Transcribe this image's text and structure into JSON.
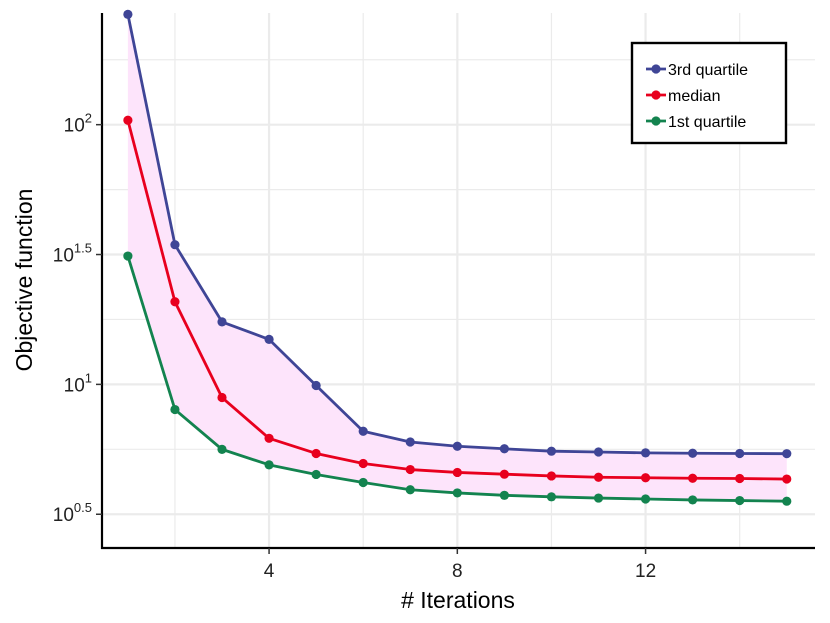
{
  "chart_data": {
    "type": "line",
    "xlabel": "# Iterations",
    "ylabel": "Objective function",
    "x": [
      1,
      2,
      3,
      4,
      5,
      6,
      7,
      8,
      9,
      10,
      11,
      12,
      13,
      14,
      15
    ],
    "x_ticks": [
      4,
      8,
      12
    ],
    "xlim": [
      0.45,
      15.6
    ],
    "y_scale": "log10",
    "y_ticks": [
      {
        "base": "10",
        "exp": "0.5"
      },
      {
        "base": "10",
        "exp": "1"
      },
      {
        "base": "10",
        "exp": "1.5"
      },
      {
        "base": "10",
        "exp": "2"
      }
    ],
    "ylim_log10": [
      0.37,
      2.43
    ],
    "grid": true,
    "legend_position": "top-right",
    "ribbon": {
      "between": [
        "1st quartile",
        "3rd quartile"
      ],
      "color": "#fde4fb"
    },
    "series": [
      {
        "name": "3rd quartile",
        "color": "#3f4596",
        "values": [
          266,
          34.5,
          17.4,
          14.9,
          9.9,
          6.6,
          6.0,
          5.78,
          5.65,
          5.53,
          5.49,
          5.45,
          5.43,
          5.42,
          5.41
        ]
      },
      {
        "name": "median",
        "color": "#e8001e",
        "values": [
          104,
          20.8,
          8.9,
          6.2,
          5.42,
          4.96,
          4.7,
          4.58,
          4.51,
          4.44,
          4.39,
          4.37,
          4.35,
          4.34,
          4.32
        ]
      },
      {
        "name": "1st quartile",
        "color": "#13834f",
        "values": [
          31.2,
          8.0,
          5.62,
          4.9,
          4.5,
          4.19,
          3.93,
          3.82,
          3.74,
          3.69,
          3.65,
          3.62,
          3.59,
          3.57,
          3.55
        ]
      }
    ]
  }
}
